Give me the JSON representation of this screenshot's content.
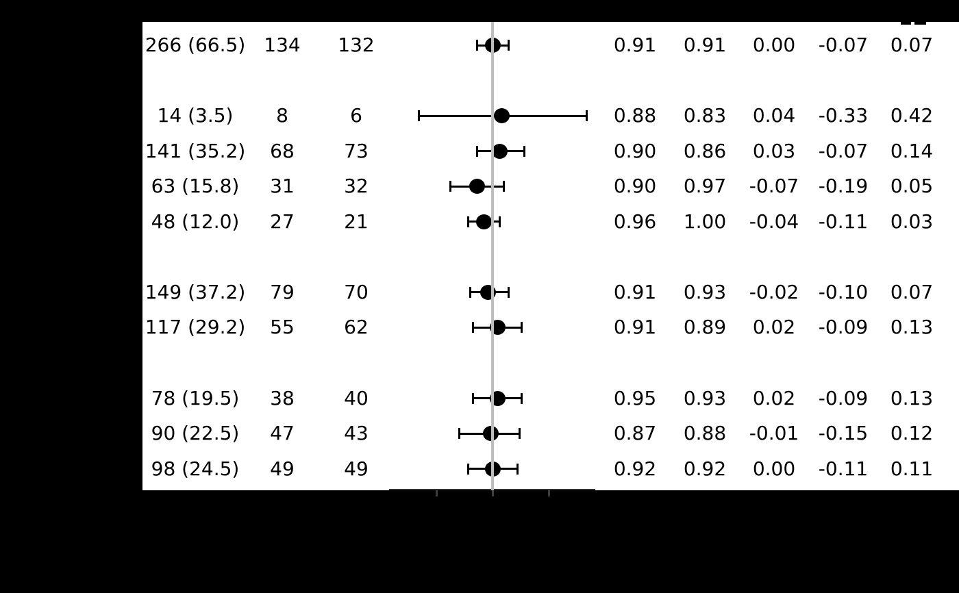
{
  "figure": {
    "background_color": "#000000",
    "panel_color": "#ffffff",
    "text_color": "#000000",
    "reference_line_color": "#bdbdbd",
    "marker_color": "#000000"
  },
  "chart_data": {
    "type": "scatter",
    "subtype": "forest-plot-with-table",
    "title": "",
    "xlabel": "",
    "ylabel": "",
    "x_axis": {
      "tick_values": [
        -0.25,
        0,
        0.25
      ],
      "reference_value": 0,
      "approx_range": [
        -0.465,
        0.455
      ],
      "grid": false
    },
    "legend": null,
    "note": "Row group labels, column headers and x-axis tick labels are rendered black-on-black in the source image and are not visible.",
    "rows": [
      {
        "slot": 0,
        "cells": [
          "266 (66.5)",
          "134",
          "132",
          "0.91",
          "0.91",
          "0.00",
          "-0.07",
          "0.07"
        ],
        "est": 0.0,
        "lo": -0.07,
        "hi": 0.07
      },
      {
        "slot": 2,
        "cells": [
          "14 (3.5)",
          "8",
          "6",
          "0.88",
          "0.83",
          "0.04",
          "-0.33",
          "0.42"
        ],
        "est": 0.04,
        "lo": -0.33,
        "hi": 0.42
      },
      {
        "slot": 3,
        "cells": [
          "141 (35.2)",
          "68",
          "73",
          "0.90",
          "0.86",
          "0.03",
          "-0.07",
          "0.14"
        ],
        "est": 0.03,
        "lo": -0.07,
        "hi": 0.14
      },
      {
        "slot": 4,
        "cells": [
          "63 (15.8)",
          "31",
          "32",
          "0.90",
          "0.97",
          "-0.07",
          "-0.19",
          "0.05"
        ],
        "est": -0.07,
        "lo": -0.19,
        "hi": 0.05
      },
      {
        "slot": 5,
        "cells": [
          "48 (12.0)",
          "27",
          "21",
          "0.96",
          "1.00",
          "-0.04",
          "-0.11",
          "0.03"
        ],
        "est": -0.04,
        "lo": -0.11,
        "hi": 0.03
      },
      {
        "slot": 7,
        "cells": [
          "149 (37.2)",
          "79",
          "70",
          "0.91",
          "0.93",
          "-0.02",
          "-0.10",
          "0.07"
        ],
        "est": -0.02,
        "lo": -0.1,
        "hi": 0.07
      },
      {
        "slot": 8,
        "cells": [
          "117 (29.2)",
          "55",
          "62",
          "0.91",
          "0.89",
          "0.02",
          "-0.09",
          "0.13"
        ],
        "est": 0.02,
        "lo": -0.09,
        "hi": 0.13
      },
      {
        "slot": 10,
        "cells": [
          "78 (19.5)",
          "38",
          "40",
          "0.95",
          "0.93",
          "0.02",
          "-0.09",
          "0.13"
        ],
        "est": 0.02,
        "lo": -0.09,
        "hi": 0.13
      },
      {
        "slot": 11,
        "cells": [
          "90 (22.5)",
          "47",
          "43",
          "0.87",
          "0.88",
          "-0.01",
          "-0.15",
          "0.12"
        ],
        "est": -0.01,
        "lo": -0.15,
        "hi": 0.12
      },
      {
        "slot": 12,
        "cells": [
          "98 (24.5)",
          "49",
          "49",
          "0.92",
          "0.92",
          "0.00",
          "-0.11",
          "0.11"
        ],
        "est": 0.0,
        "lo": -0.11,
        "hi": 0.11
      }
    ]
  }
}
